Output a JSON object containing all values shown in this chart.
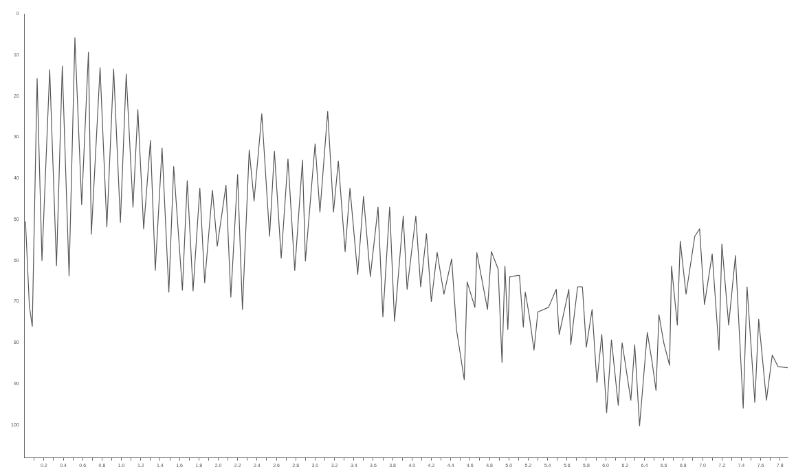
{
  "chart_data": {
    "type": "line",
    "xlim": [
      0,
      7.88
    ],
    "ylim": [
      108,
      0
    ],
    "xticks": [
      {
        "value": 0.1,
        "label": null
      },
      {
        "value": 0.2,
        "label": "0.2"
      },
      {
        "value": 0.3,
        "label": null
      },
      {
        "value": 0.4,
        "label": "0.4"
      },
      {
        "value": 0.5,
        "label": null
      },
      {
        "value": 0.6,
        "label": "0.6"
      },
      {
        "value": 0.7,
        "label": null
      },
      {
        "value": 0.8,
        "label": "0.8"
      },
      {
        "value": 0.9,
        "label": null
      },
      {
        "value": 1.0,
        "label": "1.0"
      },
      {
        "value": 1.1,
        "label": null
      },
      {
        "value": 1.2,
        "label": "1.2"
      },
      {
        "value": 1.3,
        "label": null
      },
      {
        "value": 1.4,
        "label": "1.4"
      },
      {
        "value": 1.5,
        "label": null
      },
      {
        "value": 1.6,
        "label": "1.6"
      },
      {
        "value": 1.7,
        "label": null
      },
      {
        "value": 1.8,
        "label": "1.8"
      },
      {
        "value": 1.9,
        "label": null
      },
      {
        "value": 2.0,
        "label": "2.0"
      },
      {
        "value": 2.1,
        "label": null
      },
      {
        "value": 2.2,
        "label": "2.2"
      },
      {
        "value": 2.3,
        "label": null
      },
      {
        "value": 2.4,
        "label": "2.4"
      },
      {
        "value": 2.5,
        "label": null
      },
      {
        "value": 2.6,
        "label": "2.6"
      },
      {
        "value": 2.7,
        "label": null
      },
      {
        "value": 2.8,
        "label": "2.8"
      },
      {
        "value": 2.9,
        "label": null
      },
      {
        "value": 3.0,
        "label": "3.0"
      },
      {
        "value": 3.1,
        "label": null
      },
      {
        "value": 3.2,
        "label": "3.2"
      },
      {
        "value": 3.3,
        "label": null
      },
      {
        "value": 3.4,
        "label": "3.4"
      },
      {
        "value": 3.5,
        "label": null
      },
      {
        "value": 3.6,
        "label": "3.6"
      },
      {
        "value": 3.7,
        "label": null
      },
      {
        "value": 3.8,
        "label": "3.8"
      },
      {
        "value": 3.9,
        "label": null
      },
      {
        "value": 4.0,
        "label": "4.0"
      },
      {
        "value": 4.1,
        "label": null
      },
      {
        "value": 4.2,
        "label": "4.2"
      },
      {
        "value": 4.3,
        "label": null
      },
      {
        "value": 4.4,
        "label": "4.4"
      },
      {
        "value": 4.5,
        "label": null
      },
      {
        "value": 4.6,
        "label": "4.6"
      },
      {
        "value": 4.7,
        "label": null
      },
      {
        "value": 4.8,
        "label": "4.8"
      },
      {
        "value": 4.9,
        "label": null
      },
      {
        "value": 5.0,
        "label": "5.0"
      },
      {
        "value": 5.1,
        "label": null
      },
      {
        "value": 5.2,
        "label": "5.2"
      },
      {
        "value": 5.3,
        "label": null
      },
      {
        "value": 5.4,
        "label": "5.4"
      },
      {
        "value": 5.5,
        "label": null
      },
      {
        "value": 5.6,
        "label": "5.6"
      },
      {
        "value": 5.7,
        "label": null
      },
      {
        "value": 5.8,
        "label": "5.8"
      },
      {
        "value": 5.9,
        "label": null
      },
      {
        "value": 6.0,
        "label": "6.0"
      },
      {
        "value": 6.1,
        "label": null
      },
      {
        "value": 6.2,
        "label": "6.2"
      },
      {
        "value": 6.3,
        "label": null
      },
      {
        "value": 6.4,
        "label": "6.4"
      },
      {
        "value": 6.5,
        "label": null
      },
      {
        "value": 6.6,
        "label": "6.6"
      },
      {
        "value": 6.7,
        "label": null
      },
      {
        "value": 6.8,
        "label": "6.8"
      },
      {
        "value": 6.9,
        "label": null
      },
      {
        "value": 7.0,
        "label": "7.0"
      },
      {
        "value": 7.1,
        "label": null
      },
      {
        "value": 7.2,
        "label": "7.2"
      },
      {
        "value": 7.3,
        "label": null
      },
      {
        "value": 7.4,
        "label": "7.4"
      },
      {
        "value": 7.5,
        "label": null
      },
      {
        "value": 7.6,
        "label": "7.6"
      },
      {
        "value": 7.7,
        "label": null
      },
      {
        "value": 7.8,
        "label": "7.8"
      }
    ],
    "yticks": [
      0,
      10,
      20,
      30,
      40,
      50,
      60,
      70,
      80,
      90,
      100
    ],
    "grid": false,
    "legend": false,
    "marker": "none",
    "line_style": "solid",
    "series": [
      {
        "color": "#555555",
        "x": [
          0.01,
          0.05,
          0.08,
          0.13,
          0.18,
          0.26,
          0.33,
          0.39,
          0.46,
          0.52,
          0.59,
          0.66,
          0.69,
          0.78,
          0.85,
          0.92,
          0.99,
          1.05,
          1.12,
          1.17,
          1.23,
          1.3,
          1.35,
          1.42,
          1.49,
          1.54,
          1.63,
          1.68,
          1.74,
          1.81,
          1.86,
          1.94,
          1.99,
          2.08,
          2.13,
          2.2,
          2.25,
          2.32,
          2.37,
          2.45,
          2.53,
          2.58,
          2.65,
          2.72,
          2.79,
          2.87,
          2.9,
          3.0,
          3.05,
          3.13,
          3.19,
          3.24,
          3.31,
          3.36,
          3.44,
          3.5,
          3.57,
          3.65,
          3.7,
          3.77,
          3.82,
          3.91,
          3.95,
          4.04,
          4.09,
          4.15,
          4.2,
          4.26,
          4.33,
          4.41,
          4.46,
          4.54,
          4.57,
          4.65,
          4.67,
          4.78,
          4.82,
          4.89,
          4.93,
          4.96,
          4.99,
          5.01,
          5.11,
          5.15,
          5.17,
          5.21,
          5.26,
          5.3,
          5.41,
          5.49,
          5.52,
          5.62,
          5.64,
          5.71,
          5.76,
          5.8,
          5.86,
          5.91,
          5.96,
          6.01,
          6.06,
          6.13,
          6.17,
          6.26,
          6.3,
          6.35,
          6.43,
          6.48,
          6.52,
          6.55,
          6.6,
          6.66,
          6.68,
          6.74,
          6.77,
          6.83,
          6.92,
          6.97,
          7.02,
          7.1,
          7.17,
          7.2,
          7.27,
          7.34,
          7.42,
          7.46,
          7.54,
          7.58,
          7.66,
          7.72,
          7.78,
          7.88
        ],
        "values": [
          50.5,
          71,
          76,
          15.7,
          60,
          13.6,
          61.3,
          12.7,
          63.7,
          5.8,
          46.4,
          9.3,
          53.6,
          13.1,
          51.8,
          13.4,
          50.7,
          14.6,
          47,
          23.3,
          52.3,
          30.8,
          62.4,
          32.6,
          67.7,
          37.1,
          67.2,
          40.6,
          67.4,
          42.4,
          65.4,
          42.9,
          56.5,
          41.7,
          68.9,
          39.1,
          71.9,
          33.1,
          45.5,
          24.3,
          54.1,
          33.4,
          59.4,
          35.3,
          62.4,
          35.6,
          60.1,
          31.6,
          48.2,
          23.7,
          48.2,
          35.8,
          57.8,
          42.4,
          63.4,
          44.4,
          63.9,
          47,
          73.7,
          47,
          74.8,
          49.2,
          67,
          49.2,
          66.4,
          53.5,
          70,
          58,
          68.2,
          59.6,
          76.8,
          89,
          65.2,
          71.4,
          58.1,
          71.9,
          57.8,
          62.1,
          84.8,
          61.4,
          76.8,
          63.9,
          63.6,
          76.2,
          67.7,
          73.2,
          81.8,
          72.5,
          71.4,
          67,
          78,
          67,
          80.5,
          66.4,
          66.4,
          81.1,
          71.9,
          89.7,
          78,
          97,
          79.3,
          95.2,
          80,
          94,
          80.5,
          100.2,
          77.5,
          84.8,
          91.6,
          73.2,
          80,
          85.5,
          61.4,
          75.7,
          55.3,
          68.2,
          54.1,
          52.3,
          70.7,
          58.4,
          81.8,
          56,
          75.7,
          58.8,
          95.9,
          66.4,
          94.5,
          74.3,
          94,
          83,
          85.8,
          86.1
        ]
      }
    ]
  }
}
